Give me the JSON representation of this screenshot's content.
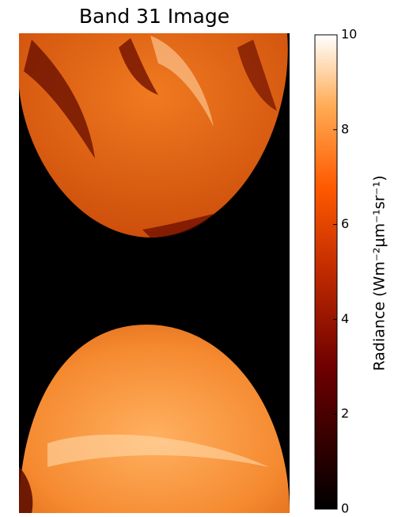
{
  "chart_data": {
    "type": "image",
    "title": "Band 31 Image",
    "colorbar_label": "Radiance (Wm⁻²μm⁻¹sr⁻¹)",
    "clim": [
      0,
      10
    ],
    "cticks": [
      0,
      2,
      4,
      6,
      8,
      10
    ],
    "colormap": "gist_heat"
  }
}
